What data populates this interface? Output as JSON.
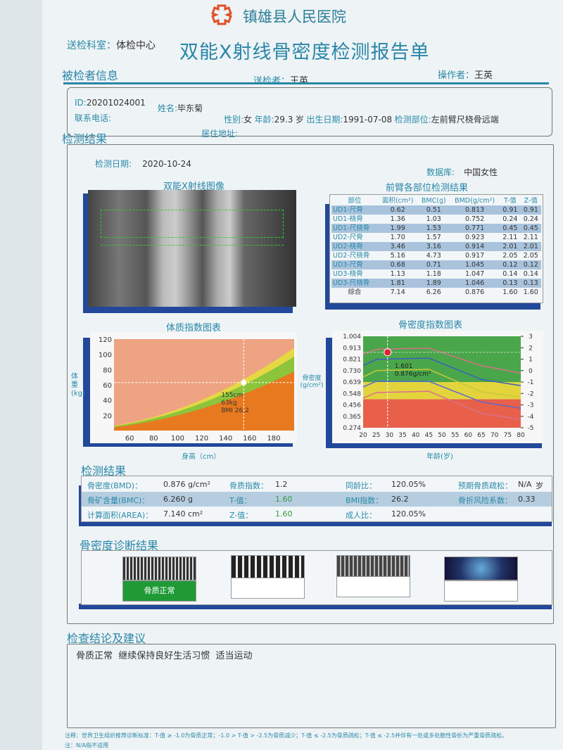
{
  "header": {
    "hospital": "镇雄县人民医院",
    "title": "双能X射线骨密度检测报告单",
    "dept_label": "送检科室：",
    "dept": "体检中心",
    "sender_label": "送检者：",
    "sender": "王英",
    "operator_label": "操作者：",
    "operator": "王英",
    "logo_color": "#e0502a"
  },
  "patient": {
    "section": "被检者信息",
    "id_label": "ID:",
    "id": "20201024001",
    "name_label": "姓名:",
    "name": "毕东菊",
    "sex_label": "性别:",
    "sex": "女",
    "age_label": "年龄:",
    "age": "29.3",
    "age_unit": "岁",
    "dob_label": "出生日期:",
    "dob": "1991-07-08",
    "site_label": "检测部位:",
    "site": "左前臂尺桡骨远端",
    "phone_label": "联系电话:",
    "phone": "",
    "address_label": "居住地址:",
    "address": ""
  },
  "results": {
    "section": "检测结果",
    "date_label": "检测日期:",
    "date": "2020-10-24",
    "db_label": "数据库:",
    "db": "中国女性",
    "xray_title": "双能X射线图像",
    "table_title": "前臂各部位检测结果",
    "table": {
      "headers": [
        "部位",
        "面积(cm²)",
        "BMC(g)",
        "BMD(g/cm²)",
        "T-值",
        "Z-值"
      ],
      "rows": [
        [
          "UD1-尺骨",
          "0.62",
          "0.51",
          "0.813",
          "0.91",
          "0.91"
        ],
        [
          "UD1-桡骨",
          "1.36",
          "1.03",
          "0.752",
          "0.24",
          "0.24"
        ],
        [
          "UD1-尺桡骨",
          "1.99",
          "1.53",
          "0.771",
          "0.45",
          "0.45"
        ],
        [
          "UD2-尺骨",
          "1.70",
          "1.57",
          "0.923",
          "2.11",
          "2.11"
        ],
        [
          "UD2-桡骨",
          "3.46",
          "3.16",
          "0.914",
          "2.01",
          "2.01"
        ],
        [
          "UD2-尺桡骨",
          "5.16",
          "4.73",
          "0.917",
          "2.05",
          "2.05"
        ],
        [
          "UD3-尺骨",
          "0.68",
          "0.71",
          "1.045",
          "0.12",
          "0.12"
        ],
        [
          "UD3-桡骨",
          "1.13",
          "1.18",
          "1.047",
          "0.14",
          "0.14"
        ],
        [
          "UD3-尺桡骨",
          "1.81",
          "1.89",
          "1.046",
          "0.13",
          "0.13"
        ],
        [
          "综合",
          "7.14",
          "6.26",
          "0.876",
          "1.60",
          "1.60"
        ]
      ]
    }
  },
  "chart_data": [
    {
      "type": "area",
      "title": "体质指数图表",
      "xlabel": "身高（cm）",
      "ylabel": "体重(kg)",
      "xticks": [
        60,
        80,
        100,
        120,
        140,
        160,
        180
      ],
      "yticks": [
        20,
        40,
        60,
        80,
        100,
        120
      ],
      "xlim": [
        47,
        197
      ],
      "ylim": [
        0,
        120
      ],
      "bands_bmi": [
        20,
        25,
        28
      ],
      "band_colors": [
        "#e8791f",
        "#8cc43c",
        "#e6d843",
        "#eea382"
      ],
      "point": {
        "height_cm": 155,
        "weight_kg": 63,
        "bmi": 26.2
      },
      "annotation": [
        "155cm",
        "63kg",
        "BMI 26.2"
      ]
    },
    {
      "type": "line",
      "title": "骨密度指数图表",
      "xlabel": "年龄(岁)",
      "ylabel": "骨密度(g/cm²)",
      "xticks": [
        20,
        25,
        30,
        35,
        40,
        45,
        50,
        55,
        60,
        65,
        70,
        75,
        80
      ],
      "yticks": [
        "1.004",
        "0.913",
        "0.821",
        "0.730",
        "0.639",
        "0.548",
        "0.456",
        "0.365",
        "0.274"
      ],
      "yticks_right": [
        "3",
        "2",
        "1",
        "0",
        "-1",
        "-2",
        "-3",
        "-4",
        "-5"
      ],
      "xlim": [
        20,
        80
      ],
      "ylim": [
        0.274,
        1.004
      ],
      "zones": [
        {
          "from": 0.274,
          "to": 0.502,
          "color": "#e8604a"
        },
        {
          "from": 0.502,
          "to": 0.639,
          "color": "#e3d43e"
        },
        {
          "from": 0.639,
          "to": 1.004,
          "color": "#4aa64a"
        }
      ],
      "curve_ages": [
        20,
        25,
        45,
        65,
        80
      ],
      "series": [
        {
          "color": "#d9708a",
          "values": [
            0.86,
            0.9,
            0.91,
            0.77,
            0.71
          ]
        },
        {
          "color": "#3a5fc0",
          "values": [
            0.77,
            0.82,
            0.83,
            0.66,
            0.61
          ]
        },
        {
          "color": "#c9c93a",
          "values": [
            0.68,
            0.73,
            0.74,
            0.56,
            0.52
          ]
        },
        {
          "color": "#5a6ad0",
          "values": [
            0.6,
            0.645,
            0.645,
            0.48,
            0.43
          ]
        },
        {
          "color": "#d9708a",
          "values": [
            0.51,
            0.555,
            0.565,
            0.39,
            0.34
          ]
        }
      ],
      "point": {
        "age": 29.3,
        "bmd": 0.876,
        "t": 1.601
      },
      "annotation": [
        "1.601",
        "0.876g/cm²"
      ]
    }
  ],
  "summary": {
    "section": "检测结果",
    "rows": [
      [
        {
          "l": "骨密度(BMD)：",
          "v": "0.876 g/cm²"
        },
        {
          "l": "骨质指数：",
          "v": "1.2"
        },
        {
          "l": "同龄比：",
          "v": "120.05%"
        },
        {
          "l": "预期骨质疏松：",
          "v": "N/A"
        },
        {
          "l": "",
          "v": "岁"
        }
      ],
      [
        {
          "l": "骨矿含量(BMC)：",
          "v": "6.260 g"
        },
        {
          "l": "T-值：",
          "v": "1.60"
        },
        {
          "l": "BMI指数：",
          "v": "26.2"
        },
        {
          "l": "骨折风险系数：",
          "v": "0.33"
        }
      ],
      [
        {
          "l": "计算面积(AREA)：",
          "v": "7.140 cm²"
        },
        {
          "l": "Z-值：",
          "v": "1.60"
        },
        {
          "l": "成人比：",
          "v": "120.05%"
        }
      ]
    ]
  },
  "diagnosis": {
    "section": "骨密度诊断结果",
    "selected": "骨质正常",
    "selected_color": "#1f9a35"
  },
  "conclusion": {
    "section": "检查结论及建议",
    "text": "骨质正常  继续保持良好生活习惯  适当运动"
  },
  "footnote": {
    "line1": "注释：世界卫生组织推荐诊断标准：T-值 ≥ -1.0为骨质正常；-1.0 > T-值 > -2.5为骨质减少；T-值 ≤ -2.5为骨质疏松；T-值 ≤ -2.5并伴有一处或多处脆性骨折为严重骨质疏松。",
    "line2": "注：N/A指不适用"
  }
}
